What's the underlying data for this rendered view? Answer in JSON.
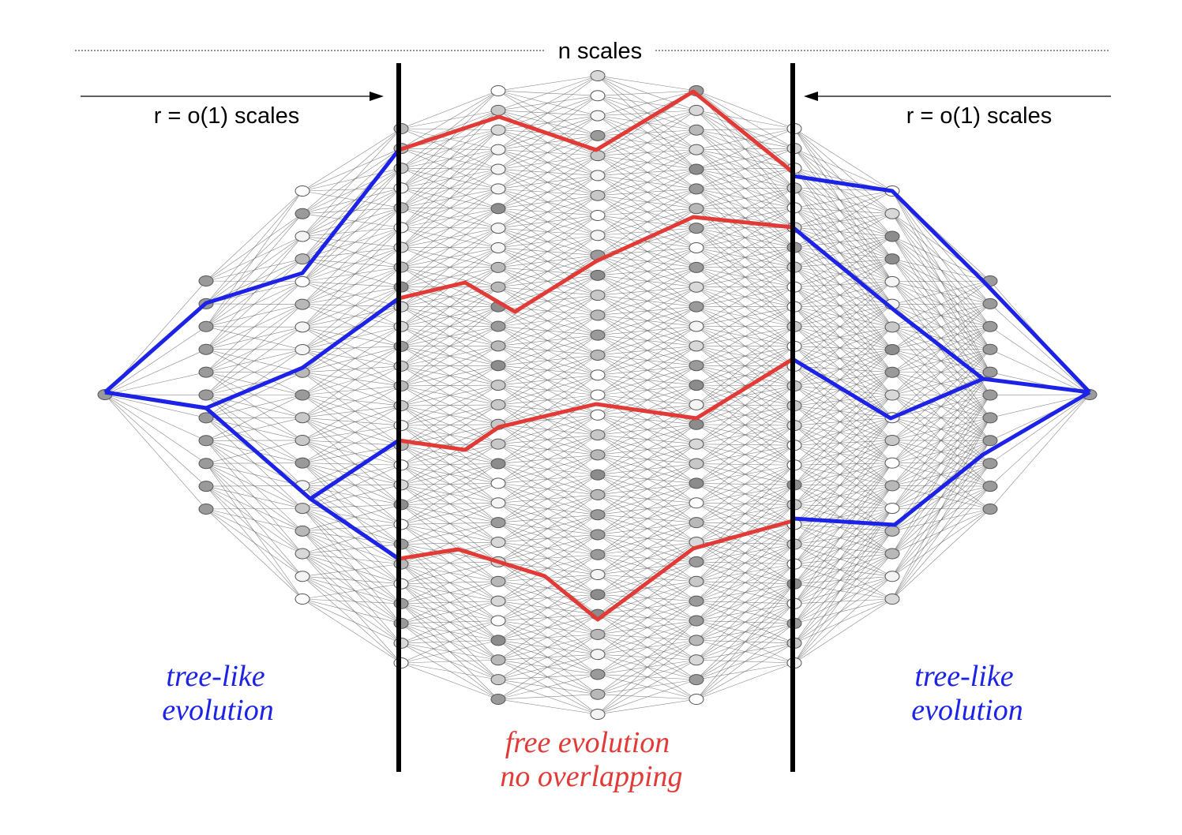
{
  "title_top": "n scales",
  "left_range_label": "r = o(1) scales",
  "right_range_label": "r = o(1) scales",
  "left_region_label": [
    "tree-like",
    "evolution"
  ],
  "right_region_label": [
    "tree-like",
    "evolution"
  ],
  "center_region_label": [
    "free evolution",
    "no overlapping"
  ],
  "colors": {
    "tree_paths": "#1c22e6",
    "free_paths": "#e23a36",
    "boundary": "#000000",
    "edges": "#555555",
    "node_stroke": "#555555"
  },
  "network": {
    "columns_node_counts": [
      1,
      11,
      19,
      28,
      32,
      33,
      32,
      28,
      19,
      11,
      1
    ],
    "left_tree_paths": 4,
    "free_paths": 4,
    "right_tree_paths": 4
  }
}
